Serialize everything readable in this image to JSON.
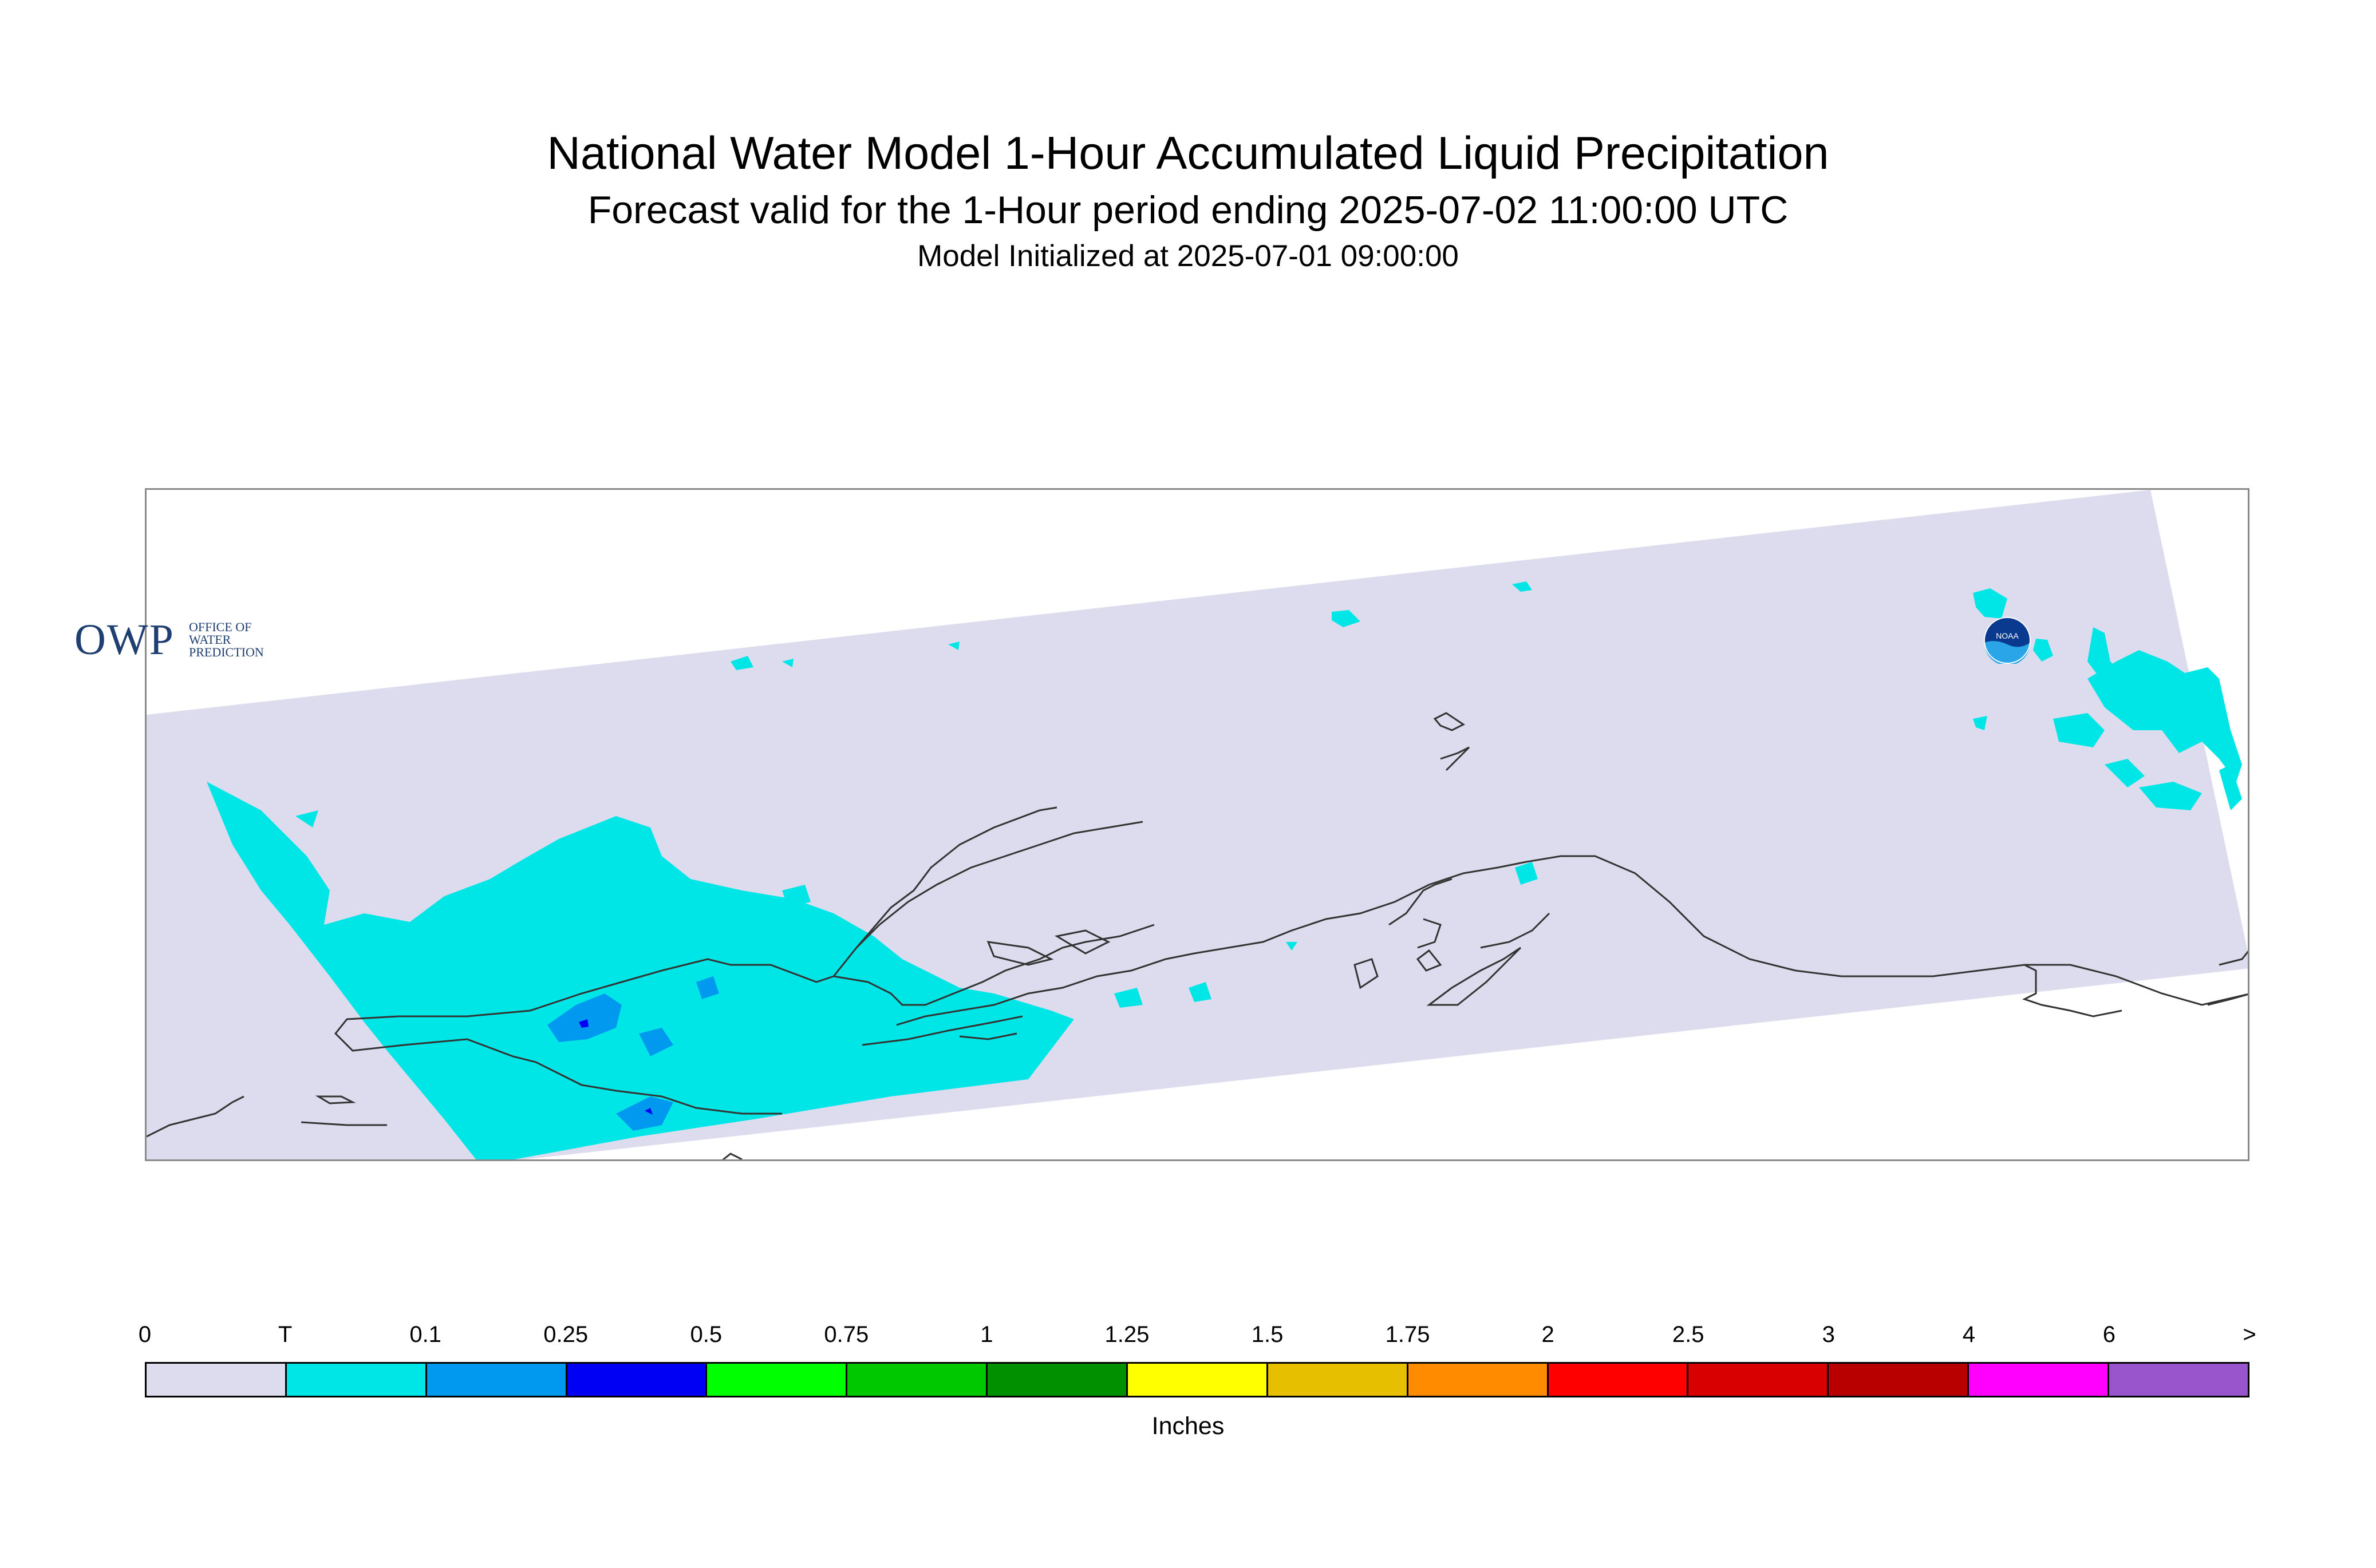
{
  "header": {
    "title": "National Water Model 1-Hour Accumulated Liquid Precipitation",
    "subtitle": "Forecast valid for the 1-Hour period ending 2025-07-02 11:00:00 UTC",
    "init": "Model Initialized at 2025-07-01 09:00:00"
  },
  "logos": {
    "owp_text": "OWP",
    "owp_line1": "OFFICE OF",
    "owp_line2": "WATER",
    "owp_line3": "PREDICTION",
    "noaa_text": "NOAA"
  },
  "legend": {
    "labels": [
      "0",
      "T",
      "0.1",
      "0.25",
      "0.5",
      "0.75",
      "1",
      "1.25",
      "1.5",
      "1.75",
      "2",
      "2.5",
      "3",
      "4",
      "6",
      ">"
    ],
    "colors": [
      "#dcdcee",
      "#00e6e6",
      "#0099f0",
      "#0000f5",
      "#00ff00",
      "#00c800",
      "#009000",
      "#ffff00",
      "#e6c000",
      "#ff8c00",
      "#ff0000",
      "#d80000",
      "#b80000",
      "#ff00ff",
      "#9955cc"
    ],
    "units": "Inches"
  },
  "colors": {
    "domain_fill": "#dcdcee",
    "trace": "#00e6e6",
    "light_blue": "#0099f0",
    "blue": "#0000f5",
    "coastline": "#333333",
    "border": "#8a8a8a"
  }
}
